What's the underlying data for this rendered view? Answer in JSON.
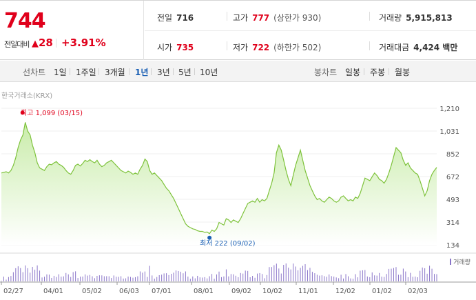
{
  "quote": {
    "price": "744",
    "change_label": "전일대비",
    "change_arrow": "▲",
    "change_value": "28",
    "change_pct": "+3.91%",
    "prev_close": {
      "label": "전일",
      "value": "716"
    },
    "high": {
      "label": "고가",
      "value": "777",
      "sub": "(상한가 930)"
    },
    "volume": {
      "label": "거래량",
      "value": "5,915,813"
    },
    "open": {
      "label": "시가",
      "value": "735"
    },
    "low": {
      "label": "저가",
      "value": "722",
      "sub": "(하한가 502)"
    },
    "amount": {
      "label": "거래대금",
      "value": "4,424 백만"
    }
  },
  "toolbar": {
    "line_label": "선차트",
    "periods": [
      "1일",
      "1주일",
      "3개월",
      "1년",
      "3년",
      "5년",
      "10년"
    ],
    "active_period": "1년",
    "candle_label": "봉차트",
    "candles": [
      "일봉",
      "주봉",
      "월봉"
    ]
  },
  "chart": {
    "source": "한국거래소(KRX)",
    "max_annotation": "최고 1,099 (03/15)",
    "min_annotation": "최저 222 (09/02)",
    "volume_legend": "거래량",
    "colors": {
      "line": "#7dc23a",
      "fill_top": "#c9ecaa",
      "fill_bottom": "#ffffff",
      "volume": "#8a75c9",
      "max": "#e0001b",
      "min": "#1a5fb4"
    }
  },
  "chart_data": {
    "type": "area",
    "y_ticks": [
      "1,210",
      "1,031",
      "852",
      "672",
      "493",
      "314",
      "134"
    ],
    "ylim": [
      134,
      1210
    ],
    "x_ticks": [
      "02/27",
      "04/01",
      "05/02",
      "06/03",
      "07/01",
      "08/01",
      "09/02",
      "10/02",
      "11/01",
      "12/02",
      "01/02",
      "02/03"
    ],
    "series": [
      {
        "values": [
          700,
          705,
          710,
          700,
          720,
          760,
          820,
          900,
          960,
          1000,
          1099,
          1030,
          1000,
          920,
          860,
          780,
          740,
          730,
          720,
          750,
          770,
          765,
          780,
          790,
          770,
          760,
          745,
          720,
          700,
          690,
          720,
          760,
          770,
          755,
          775,
          800,
          790,
          805,
          790,
          780,
          800,
          770,
          750,
          760,
          780,
          790,
          800,
          780,
          760,
          740,
          720,
          710,
          700,
          715,
          705,
          690,
          700,
          690,
          730,
          760,
          810,
          790,
          720,
          690,
          700,
          680,
          660,
          640,
          610,
          580,
          560,
          530,
          500,
          460,
          420,
          380,
          340,
          300,
          280,
          270,
          260,
          255,
          245,
          240,
          240,
          232,
          235,
          222,
          250,
          240,
          260,
          310,
          300,
          290,
          340,
          330,
          310,
          330,
          320,
          310,
          340,
          380,
          420,
          460,
          470,
          480,
          470,
          500,
          470,
          490,
          480,
          500,
          560,
          620,
          700,
          860,
          920,
          880,
          800,
          720,
          650,
          600,
          680,
          760,
          820,
          880,
          800,
          720,
          660,
          600,
          560,
          520,
          490,
          500,
          480,
          470,
          490,
          510,
          500,
          480,
          470,
          480,
          510,
          520,
          500,
          480,
          490,
          480,
          510,
          500,
          540,
          600,
          660,
          650,
          640,
          670,
          700,
          680,
          650,
          640,
          620,
          650,
          700,
          760,
          830,
          900,
          880,
          860,
          800,
          760,
          780,
          740,
          720,
          700,
          690,
          640,
          580,
          520,
          560,
          640,
          690,
          720,
          744
        ]
      }
    ]
  }
}
